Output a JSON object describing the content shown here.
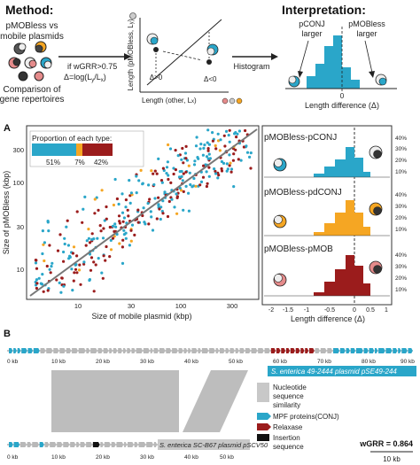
{
  "method": {
    "title": "Method:",
    "top_label_1": "pMOBless vs",
    "top_label_2": "mobile plasmids",
    "repertoire_label_1": "Comparison of",
    "repertoire_label_2": "gene repertoires",
    "condition": "if wGRR>0.75",
    "delta_formula": "Δ=log(L",
    "delta_formula_sub1": "y",
    "delta_formula_mid": "/L",
    "delta_formula_sub2": "x",
    "delta_formula_end": ")",
    "ylabel": "Length (pMOBless, L",
    "ylabel_sub": "y",
    "ylabel_end": ")",
    "xlabel": "Length (other, L",
    "xlabel_sub": "x",
    "xlabel_end": ")",
    "delta_pos": "Δ>0",
    "delta_neg": "Δ<0",
    "histogram_label": "Histogram"
  },
  "interpretation": {
    "title": "Interpretation:",
    "pconj_1": "pCONJ",
    "pconj_2": "larger",
    "pmobless_1": "pMOBless",
    "pmobless_2": "larger",
    "zero": "0",
    "xlabel": "Length difference (Δ)"
  },
  "panel_a": {
    "letter": "A",
    "legend_title": "Proportion of each type:",
    "legend_pct": [
      "51%",
      "7%",
      "42%"
    ],
    "ylabel": "Size of pMOBless (kbp)",
    "xlabel": "Size of mobile plasmid (kbp)",
    "yticks": [
      "300",
      "100",
      "30",
      "10"
    ],
    "xticks": [
      "10",
      "30",
      "100",
      "300"
    ],
    "histograms": [
      {
        "label": "pMOBless-pCONJ",
        "color": "#2aa6c9",
        "yticks": [
          "40%",
          "30%",
          "20%",
          "10%"
        ]
      },
      {
        "label": "pMOBless-pdCONJ",
        "color": "#f5a623",
        "yticks": [
          "40%",
          "30%",
          "20%",
          "10%"
        ]
      },
      {
        "label": "pMOBless-pMOB",
        "color": "#9b1c1c",
        "yticks": [
          "40%",
          "30%",
          "20%",
          "10%"
        ]
      }
    ],
    "hist_xticks": [
      "-2",
      "-1.5",
      "-1",
      "-0.5",
      "0",
      "0.5",
      "1"
    ],
    "hist_xlabel": "Length difference (Δ)"
  },
  "panel_b": {
    "letter": "B",
    "top_ticks": [
      "0 kb",
      "10 kb",
      "20 kb",
      "30 kb",
      "40 kb",
      "50 kb",
      "60 kb",
      "70 kb",
      "80 kb",
      "90 kb"
    ],
    "top_plasmid": "S. enterica 49-2444 plasmid pSE49-244",
    "bottom_ticks": [
      "0 kb",
      "10 kb",
      "20 kb",
      "30 kb",
      "40 kb",
      "50 kb"
    ],
    "bottom_plasmid": "S. enterica SC-B67 plasmid pSCV50",
    "legend": [
      {
        "label": "Nucleotide",
        "color": "#c8c8c8"
      },
      {
        "label": "sequence",
        "color": ""
      },
      {
        "label": "similarity",
        "color": ""
      },
      {
        "label": "MPF proteins(CONJ)",
        "color": "#2aa6c9"
      },
      {
        "label": "Relaxase",
        "color": "#9b1c1c"
      },
      {
        "label": "Insertion",
        "color": "#111111"
      },
      {
        "label": "sequence",
        "color": ""
      }
    ],
    "wgrr": "wGRR = 0.864",
    "scale": "10 kb"
  },
  "colors": {
    "conj": "#2aa6c9",
    "dconj": "#f5a623",
    "mob": "#9b1c1c",
    "gray": "#b8b8b8"
  }
}
